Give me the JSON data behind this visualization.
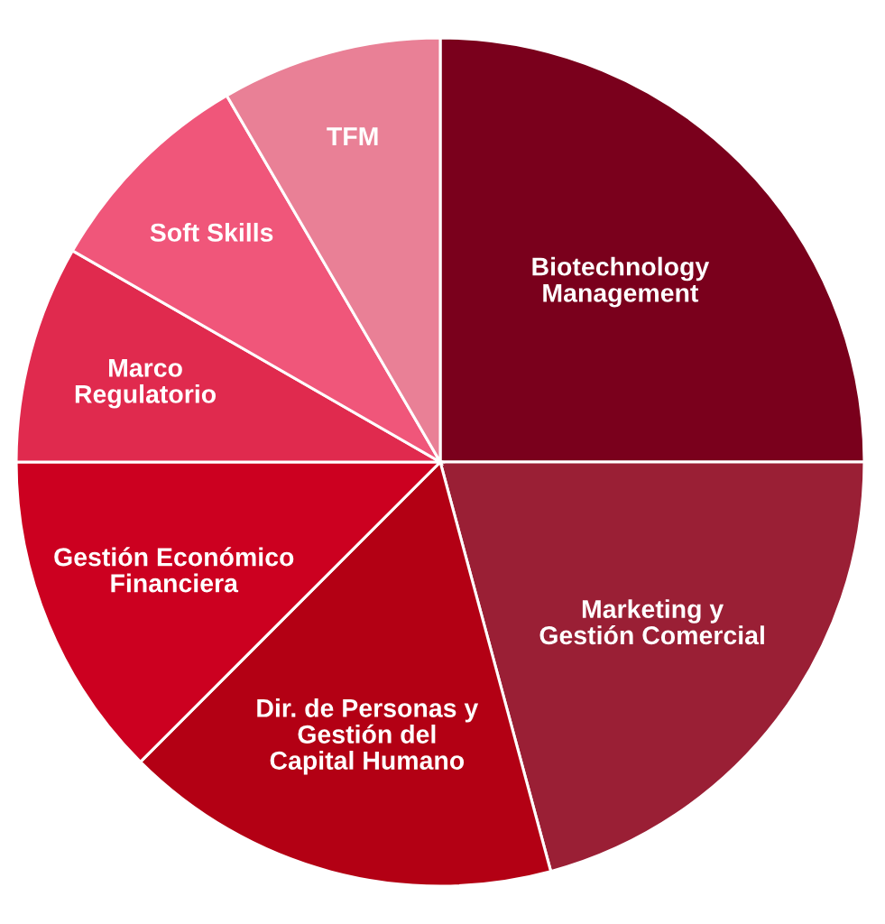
{
  "chart_data": {
    "type": "pie",
    "categories": [
      "Biotechnology\nManagement",
      "Marketing y\nGestión Comercial",
      "Dir. de Personas y\nGestión del\nCapital Humano",
      "Gestión Económico\nFinanciera",
      "Marco\nRegulatorio",
      "Soft Skills",
      "TFM"
    ],
    "values": [
      25,
      20.8,
      16.7,
      12.5,
      8.3,
      8.3,
      8.4
    ],
    "colors": [
      "#7a001c",
      "#9a1f35",
      "#b30014",
      "#cc0020",
      "#e02a4e",
      "#f0567a",
      "#e98096"
    ]
  }
}
